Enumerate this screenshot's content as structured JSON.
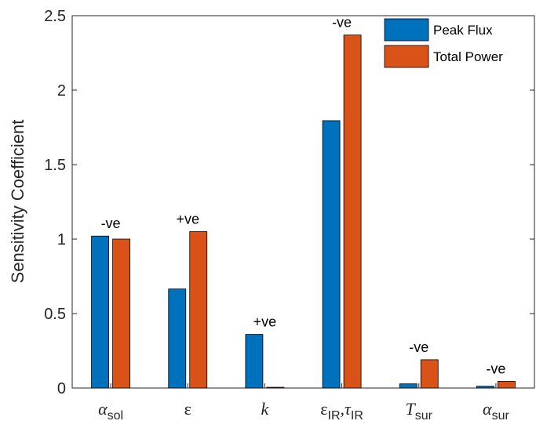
{
  "chart_data": {
    "type": "bar",
    "categories": [
      {
        "main": "α",
        "sub": "sol",
        "italic": true
      },
      {
        "main": "ε",
        "sub": "",
        "italic": false
      },
      {
        "main": "k",
        "sub": "",
        "italic": true
      },
      {
        "main": "ε",
        "sub": "IR",
        "main2": ",τ",
        "sub2": "IR",
        "italic": false
      },
      {
        "main": "T",
        "sub": "sur",
        "italic": true
      },
      {
        "main": "α",
        "sub": "sur",
        "italic": true
      }
    ],
    "series": [
      {
        "name": "Peak Flux",
        "color": "#0072BD",
        "values": [
          1.02,
          0.665,
          0.36,
          1.795,
          0.028,
          0.012
        ]
      },
      {
        "name": "Total Power",
        "color": "#D95319",
        "values": [
          1.0,
          1.05,
          0.005,
          2.37,
          0.19,
          0.045
        ]
      }
    ],
    "annotations": [
      "-ve",
      "+ve",
      "+ve",
      "-ve",
      "-ve",
      "-ve"
    ],
    "ylabel": "Sensitivity Coefficient",
    "xlabel": "",
    "ylim": [
      0,
      2.5
    ],
    "yticks": [
      "0",
      "0.5",
      "1",
      "1.5",
      "2",
      "2.5"
    ],
    "grid": false,
    "legend_placement": "top-right"
  }
}
